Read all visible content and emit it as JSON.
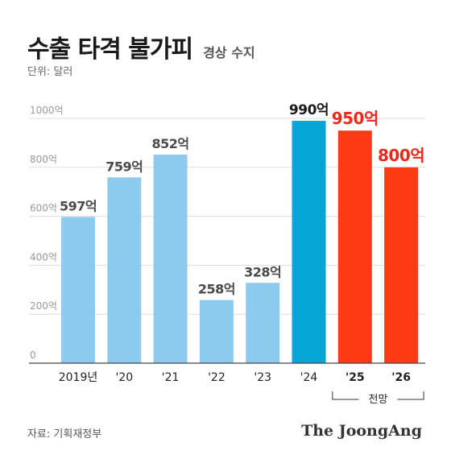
{
  "header": {
    "title": "수출 타격 불가피",
    "subtitle": "경상 수지"
  },
  "unit_label": "단위: 달러",
  "source": "자료: 기획재정부",
  "brand": "The JoongAng",
  "colors": {
    "past": "#8dcaf0",
    "current": "#04a6d6",
    "forecast": "#ff3a15",
    "forecast_label": "#e8291c",
    "label_default": "#4a4a4a",
    "axis": "#999999",
    "grid": "#dddddd"
  },
  "chart_data": {
    "type": "bar",
    "title": "수출 타격 불가피",
    "subtitle": "경상 수지",
    "unit": "단위: 달러",
    "categories": [
      "2019년",
      "'20",
      "'21",
      "'22",
      "'23",
      "'24",
      "'25",
      "'26"
    ],
    "values": [
      597,
      759,
      852,
      258,
      328,
      990,
      950,
      800
    ],
    "value_labels": [
      "597억",
      "759억",
      "852억",
      "258억",
      "328억",
      "990억",
      "950억",
      "800억"
    ],
    "bar_kind": [
      "past",
      "past",
      "past",
      "past",
      "past",
      "current",
      "forecast",
      "forecast"
    ],
    "yticks": [
      0,
      200,
      400,
      600,
      800,
      1000
    ],
    "ytick_labels": [
      "0",
      "200억",
      "400억",
      "600억",
      "800억",
      "1000억"
    ],
    "ylim": [
      0,
      1000
    ],
    "forecast_bracket_label": "전망",
    "grid": true
  }
}
